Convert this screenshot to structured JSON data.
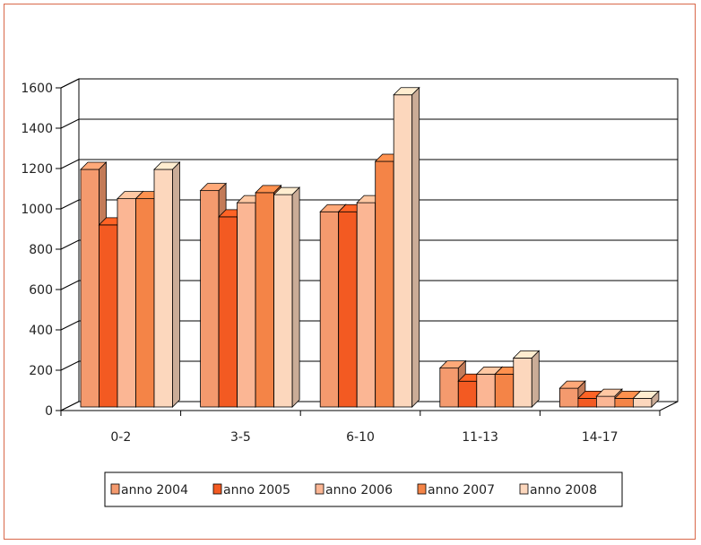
{
  "chart_data": {
    "type": "bar",
    "categories": [
      "0-2",
      "3-5",
      "6-10",
      "11-13",
      "14-17"
    ],
    "series": [
      {
        "name": "anno 2004",
        "values": [
          1160,
          1055,
          950,
          175,
          75
        ]
      },
      {
        "name": "anno 2005",
        "values": [
          885,
          925,
          950,
          110,
          25
        ]
      },
      {
        "name": "anno 2006",
        "values": [
          1015,
          995,
          995,
          145,
          35
        ]
      },
      {
        "name": "anno 2007",
        "values": [
          1015,
          1045,
          1200,
          145,
          25
        ]
      },
      {
        "name": "anno 2008",
        "values": [
          1160,
          1035,
          1530,
          225,
          25
        ]
      }
    ],
    "colors": [
      "#f49a6e",
      "#f35a22",
      "#fbb694",
      "#f48447",
      "#fcd7bd"
    ],
    "y_ticks": [
      "0",
      "200",
      "400",
      "600",
      "800",
      "1000",
      "1200",
      "1400",
      "1600"
    ],
    "ylim": [
      0,
      1600
    ],
    "grid": true,
    "legend_position": "bottom",
    "three_d": true
  }
}
